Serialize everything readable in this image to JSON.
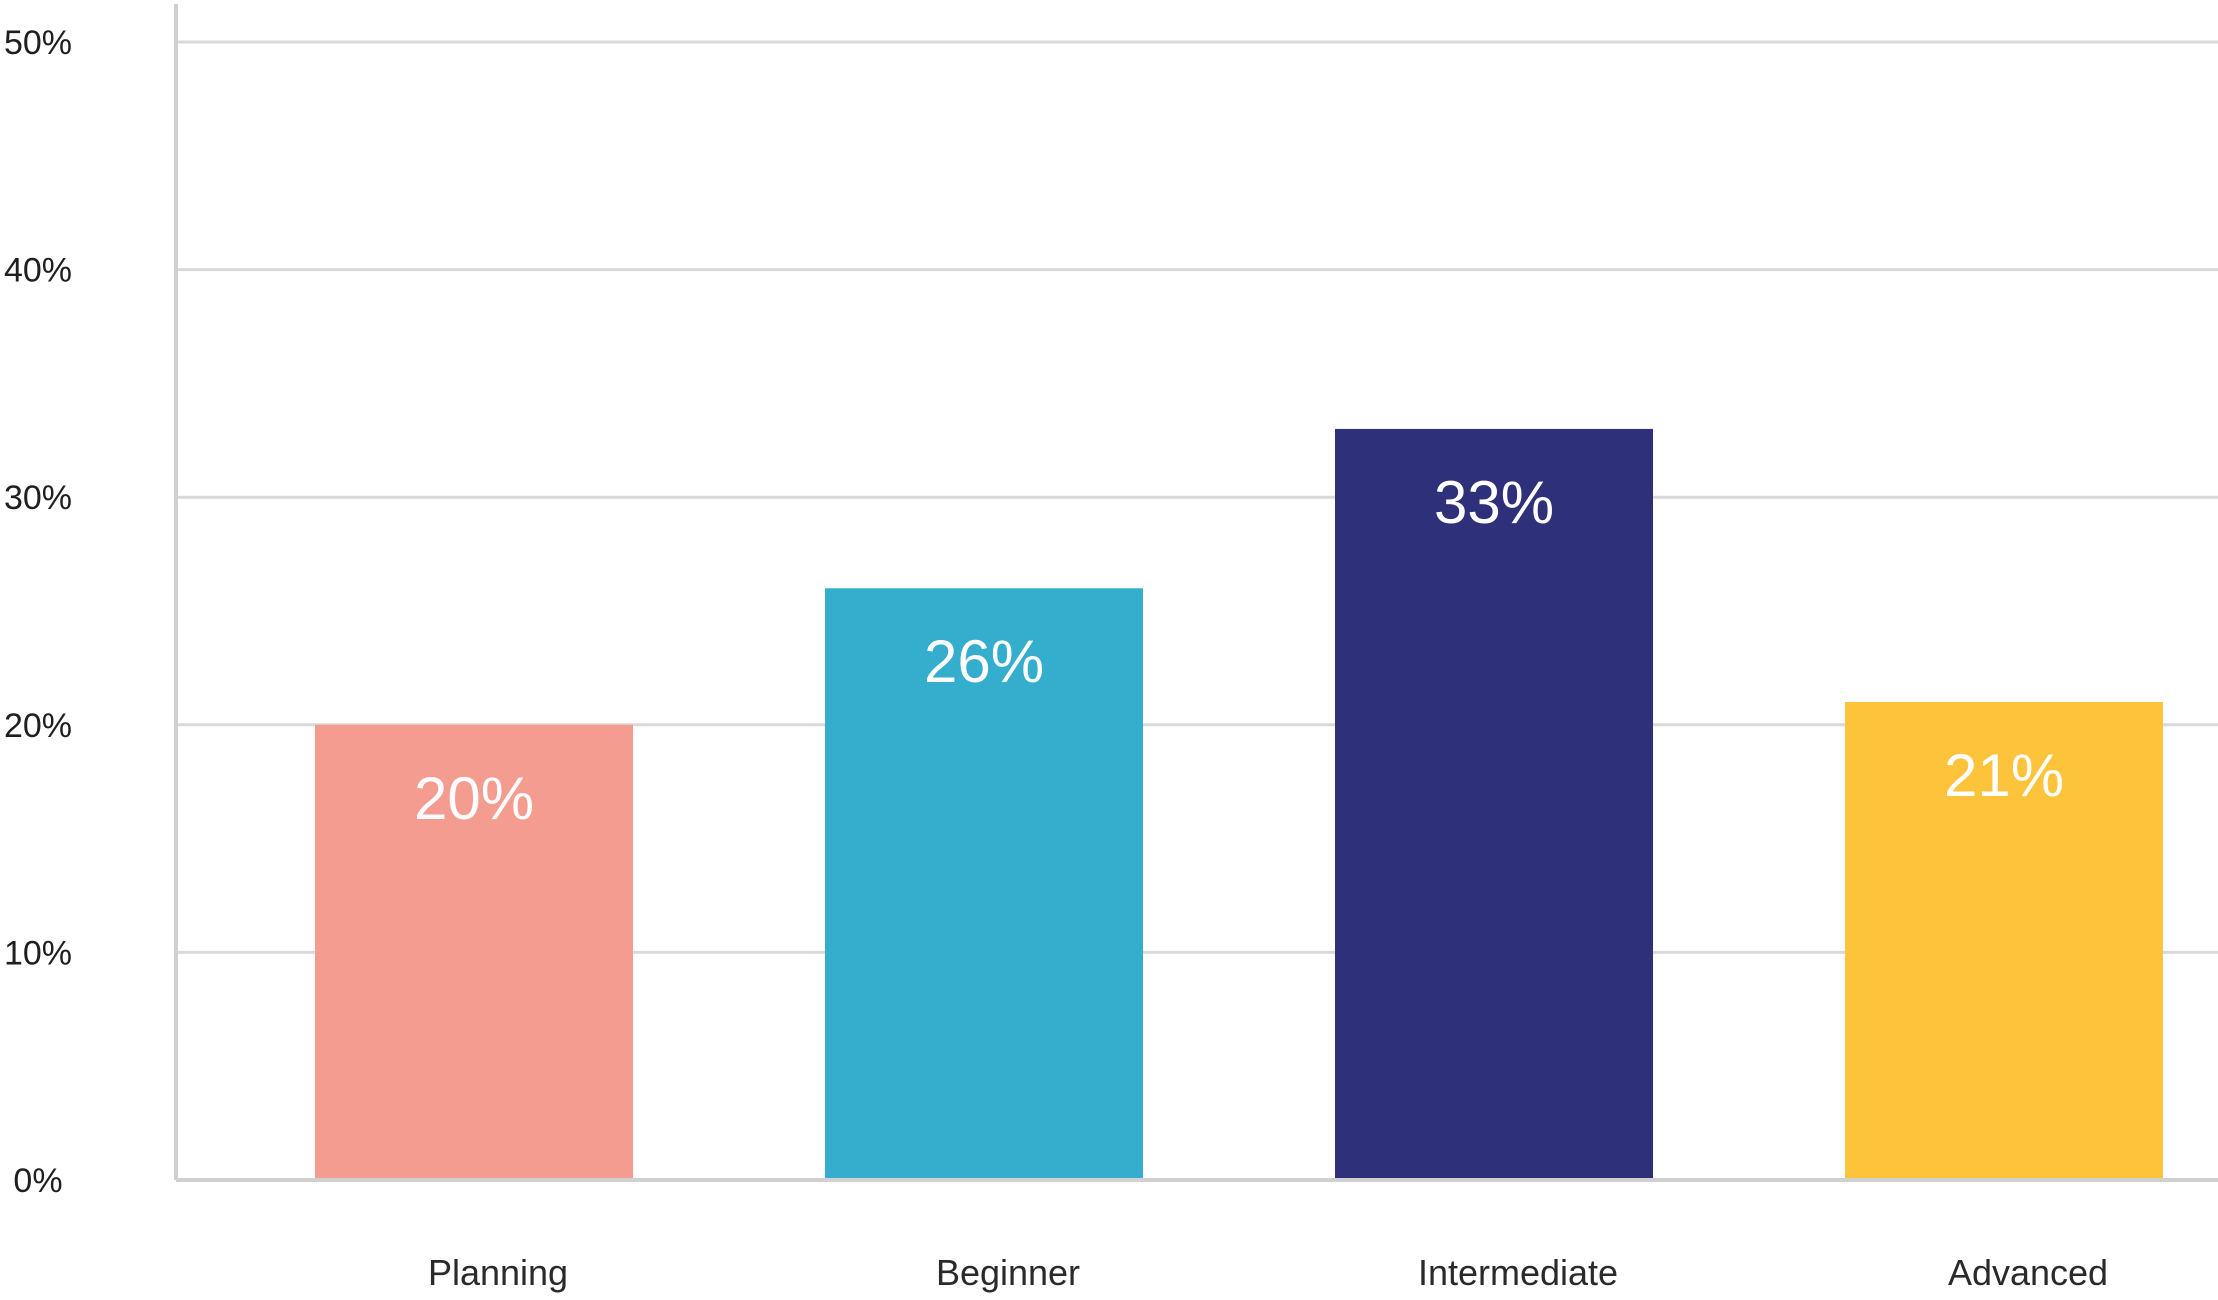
{
  "chart_data": {
    "type": "bar",
    "title": "",
    "xlabel": "",
    "ylabel": "",
    "categories": [
      "Planning",
      "Beginner",
      "Intermediate",
      "Advanced"
    ],
    "values": [
      20,
      26,
      33,
      21
    ],
    "data_labels": [
      "20%",
      "26%",
      "33%",
      "21%"
    ],
    "ylim": [
      0,
      50
    ],
    "yticks": [
      0,
      10,
      20,
      30,
      40,
      50
    ],
    "ytick_labels": [
      "0%",
      "10%",
      "20%",
      "30%",
      "40%",
      "50%"
    ],
    "grid": true,
    "legend": "none",
    "colors": [
      "#f59c91",
      "#35adcd",
      "#2e3179",
      "#fdc33b"
    ]
  }
}
